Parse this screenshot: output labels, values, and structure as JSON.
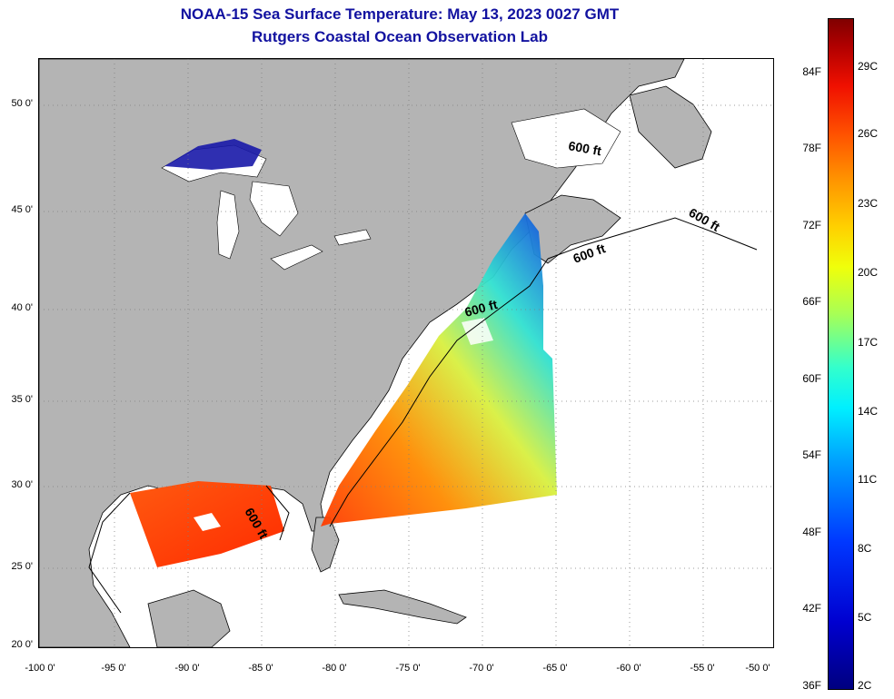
{
  "title": {
    "line1": "NOAA-15 Sea Surface Temperature:  May 13, 2023 0027 GMT",
    "line2": "Rutgers Coastal Ocean Observation Lab"
  },
  "map": {
    "lat_ticks": [
      "50 0'",
      "45 0'",
      "40 0'",
      "35 0'",
      "30 0'",
      "25 0'",
      "20 0'"
    ],
    "lon_ticks": [
      "-100 0'",
      "-95 0'",
      "-90 0'",
      "-85 0'",
      "-80 0'",
      "-75 0'",
      "-70 0'",
      "-65 0'",
      "-60 0'",
      "-55 0'",
      "-50 0'"
    ],
    "contour_labels": [
      "600 ft",
      "600 ft",
      "600 ft",
      "600 ft",
      "600 ft"
    ],
    "colors": {
      "land": "#b4b4b4",
      "ocean": "#ffffff",
      "grid": "#7f7f7f"
    }
  },
  "colorbar": {
    "fahrenheit": [
      "84F",
      "78F",
      "72F",
      "66F",
      "60F",
      "54F",
      "48F",
      "42F",
      "36F"
    ],
    "celsius": [
      "29C",
      "26C",
      "23C",
      "20C",
      "17C",
      "14C",
      "11C",
      "8C",
      "5C",
      "2C"
    ]
  }
}
